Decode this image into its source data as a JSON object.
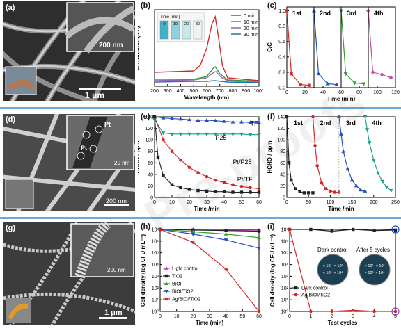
{
  "watermark": "Pre-proofs",
  "row_a": {
    "a": {
      "label": "(a)",
      "scale_main": "1 μm",
      "scale_inset": "200 nm"
    },
    "b": {
      "label": "(b)",
      "chart_data": {
        "type": "line",
        "xlabel": "Wavelength (nm)",
        "ylabel": "Absorbance(a.u)",
        "xlim": [
          200,
          1000
        ],
        "xticks": [
          200,
          300,
          400,
          500,
          600,
          700,
          800,
          900,
          1000
        ],
        "legend_title": "Time (min)",
        "inset_times": [
          "0",
          "10",
          "20",
          "30"
        ],
        "series": [
          {
            "name": "0 min",
            "color": "#d62728",
            "points": [
              [
                200,
                0.2
              ],
              [
                500,
                0.22
              ],
              [
                550,
                0.3
              ],
              [
                600,
                0.55
              ],
              [
                640,
                0.9
              ],
              [
                665,
                1.0
              ],
              [
                690,
                0.7
              ],
              [
                720,
                0.3
              ],
              [
                760,
                0.12
              ],
              [
                1000,
                0.08
              ]
            ]
          },
          {
            "name": "10 min",
            "color": "#2ca02c",
            "points": [
              [
                200,
                0.1
              ],
              [
                500,
                0.1
              ],
              [
                600,
                0.14
              ],
              [
                650,
                0.26
              ],
              [
                665,
                0.28
              ],
              [
                700,
                0.18
              ],
              [
                760,
                0.09
              ],
              [
                1000,
                0.07
              ]
            ]
          },
          {
            "name": "20 min",
            "color": "#9467bd",
            "points": [
              [
                200,
                0.08
              ],
              [
                500,
                0.09
              ],
              [
                600,
                0.12
              ],
              [
                655,
                0.2
              ],
              [
                670,
                0.21
              ],
              [
                710,
                0.13
              ],
              [
                760,
                0.08
              ],
              [
                1000,
                0.06
              ]
            ]
          },
          {
            "name": "30 min",
            "color": "#1f77b4",
            "points": [
              [
                200,
                0.06
              ],
              [
                500,
                0.07
              ],
              [
                600,
                0.07
              ],
              [
                660,
                0.08
              ],
              [
                760,
                0.06
              ],
              [
                1000,
                0.05
              ]
            ]
          }
        ]
      }
    },
    "c": {
      "label": "(c)",
      "chart_data": {
        "type": "line",
        "xlabel": "Time (min)",
        "ylabel": "C/C",
        "xlim": [
          0,
          120
        ],
        "ylim": [
          0,
          1.05
        ],
        "xticks": [
          0,
          20,
          40,
          60,
          80,
          100,
          120
        ],
        "yticks": [
          0.0,
          0.2,
          0.4,
          0.6,
          0.8,
          1.0
        ],
        "cycle_labels": [
          "1st",
          "2nd",
          "3rd",
          "4th"
        ],
        "series": [
          {
            "name": "1st",
            "color": "#d62728",
            "x": [
              0,
              5,
              15,
              25
            ],
            "y": [
              1.0,
              0.18,
              0.04,
              0.03
            ]
          },
          {
            "name": "2nd",
            "color": "#1f4fbf",
            "x": [
              30,
              35,
              45,
              55
            ],
            "y": [
              1.0,
              0.18,
              0.05,
              0.04
            ]
          },
          {
            "name": "3rd",
            "color": "#2ca02c",
            "x": [
              60,
              65,
              75,
              85
            ],
            "y": [
              1.0,
              0.18,
              0.06,
              0.05
            ]
          },
          {
            "name": "4th",
            "color": "#c44fa8",
            "x": [
              90,
              95,
              105,
              115
            ],
            "y": [
              1.0,
              0.2,
              0.17,
              0.13
            ]
          }
        ]
      }
    }
  },
  "row_d": {
    "d": {
      "label": "(d)",
      "scale_main": "200 nm",
      "scale_inset": "20 nm",
      "pt": [
        "Pt",
        "Pt"
      ]
    },
    "e": {
      "label": "(e)",
      "chart_data": {
        "type": "line",
        "xlabel": "Time /min",
        "ylabel": "HCHO / ppm",
        "xlim": [
          0,
          60
        ],
        "ylim": [
          0,
          140
        ],
        "xticks": [
          0,
          10,
          20,
          30,
          40,
          50,
          60
        ],
        "yticks": [
          0,
          20,
          40,
          60,
          80,
          100,
          120,
          140
        ],
        "series": [
          {
            "name": "TF",
            "color": "#1f4fbf",
            "x": [
              0,
              5,
              10,
              15,
              20,
              25,
              30,
              35,
              40,
              45,
              50,
              55,
              60
            ],
            "y": [
              140,
              138,
              137,
              136,
              135,
              134,
              134,
              133,
              132,
              131,
              131,
              130,
              130
            ]
          },
          {
            "name": "P25",
            "color": "#1a9e8c",
            "x": [
              0,
              5,
              10,
              15,
              20,
              25,
              30,
              35,
              40,
              45,
              50,
              55,
              60
            ],
            "y": [
              135,
              112,
              110,
              110,
              110,
              110,
              110,
              110,
              110,
              110,
              110,
              109,
              109
            ]
          },
          {
            "name": "Pt/P25",
            "color": "#d62728",
            "x": [
              0,
              5,
              10,
              15,
              20,
              25,
              30,
              35,
              40,
              45,
              50,
              55,
              60
            ],
            "y": [
              140,
              100,
              80,
              65,
              52,
              43,
              36,
              30,
              26,
              22,
              19,
              17,
              15
            ]
          },
          {
            "name": "Pt/TF",
            "color": "#222222",
            "x": [
              0,
              2,
              5,
              10,
              15,
              20,
              25,
              30,
              35,
              40,
              45,
              50,
              55,
              60
            ],
            "y": [
              140,
              70,
              38,
              22,
              17,
              14,
              12,
              11,
              10,
              10,
              9,
              9,
              9,
              9
            ]
          }
        ]
      }
    },
    "f": {
      "label": "(f)",
      "chart_data": {
        "type": "line",
        "xlabel": "Time /min",
        "ylabel": "HCHO / ppm",
        "xlim": [
          0,
          250
        ],
        "ylim": [
          0,
          140
        ],
        "xticks": [
          0,
          50,
          100,
          150,
          200,
          250
        ],
        "yticks": [
          0,
          20,
          40,
          60,
          80,
          100,
          120,
          140
        ],
        "cycle_labels": [
          "1st",
          "2nd",
          "3rd",
          "4th"
        ],
        "series": [
          {
            "name": "1st",
            "color": "#222222",
            "x": [
              0,
              5,
              10,
              20,
              30,
              40,
              50,
              60
            ],
            "y": [
              140,
              60,
              30,
              15,
              10,
              8,
              8,
              8
            ]
          },
          {
            "name": "2nd",
            "color": "#d62728",
            "x": [
              60,
              65,
              70,
              80,
              90,
              100,
              110,
              120
            ],
            "y": [
              140,
              90,
              55,
              25,
              15,
              11,
              9,
              9
            ]
          },
          {
            "name": "3rd",
            "color": "#1f4fbf",
            "x": [
              120,
              125,
              130,
              140,
              150,
              160,
              170,
              180
            ],
            "y": [
              140,
              110,
              80,
              50,
              30,
              20,
              13,
              11
            ]
          },
          {
            "name": "4th",
            "color": "#1a9e8c",
            "x": [
              180,
              185,
              190,
              200,
              210,
              220,
              230,
              240
            ],
            "y": [
              140,
              118,
              95,
              65,
              42,
              28,
              18,
              12
            ]
          }
        ]
      }
    }
  },
  "row_g": {
    "g": {
      "label": "(g)",
      "scale_main": "1 μm",
      "scale_inset": "200 nm"
    },
    "h": {
      "label": "(h)",
      "chart_data": {
        "type": "line",
        "xlabel": "Time (min)",
        "ylabel": "Cell density (log CFU mL⁻¹)",
        "xlim": [
          0,
          60
        ],
        "xticks": [
          0,
          10,
          20,
          30,
          40,
          50,
          60
        ],
        "yticks_exp": [
          0,
          1,
          2,
          3,
          4,
          5,
          6,
          7
        ],
        "series": [
          {
            "name": "Light control",
            "color": "#e040c0",
            "x": [
              0,
              20,
              40,
              60
            ],
            "y": [
              7,
              7,
              6.95,
              6.95
            ]
          },
          {
            "name": "TiO2",
            "color": "#222222",
            "x": [
              0,
              20,
              40,
              60
            ],
            "y": [
              7,
              6.95,
              6.9,
              6.85
            ]
          },
          {
            "name": "BiOI",
            "color": "#2ca02c",
            "x": [
              0,
              20,
              40,
              60
            ],
            "y": [
              7,
              6.8,
              6.6,
              6.3
            ]
          },
          {
            "name": "BiOI/TiO2",
            "color": "#1f4fbf",
            "x": [
              0,
              20,
              40,
              60
            ],
            "y": [
              7,
              6.6,
              6.1,
              5.4
            ]
          },
          {
            "name": "Ag/BiOI/TiO2",
            "color": "#d62728",
            "x": [
              0,
              20,
              40,
              60
            ],
            "y": [
              7,
              5.9,
              3.6,
              0
            ]
          }
        ]
      }
    },
    "i": {
      "label": "(i)",
      "chart_data": {
        "type": "line",
        "xlabel": "Test cycles",
        "ylabel": "Cell density (log CFU mL⁻¹)",
        "xlim": [
          0,
          5
        ],
        "xticks": [
          0,
          1,
          2,
          3,
          4,
          5
        ],
        "yticks_exp": [
          0,
          1,
          2,
          3,
          4,
          5,
          6,
          7
        ],
        "annotations": [
          "Dark control",
          "After 5 cycles"
        ],
        "plate_labels": [
          "× 10¹",
          "× 10²",
          "× 10³",
          "× 10⁴"
        ],
        "series": [
          {
            "name": "Dark control",
            "color": "#222222",
            "x": [
              0,
              1,
              2,
              3,
              4,
              5
            ],
            "y": [
              7,
              7,
              6.85,
              7,
              6.9,
              6.95
            ]
          },
          {
            "name": "Ag/BiOI/TiO2",
            "color": "#d62728",
            "x": [
              0,
              1,
              2,
              3,
              4,
              5
            ],
            "y": [
              7,
              0,
              0,
              0.1,
              0,
              0
            ]
          }
        ]
      }
    }
  }
}
